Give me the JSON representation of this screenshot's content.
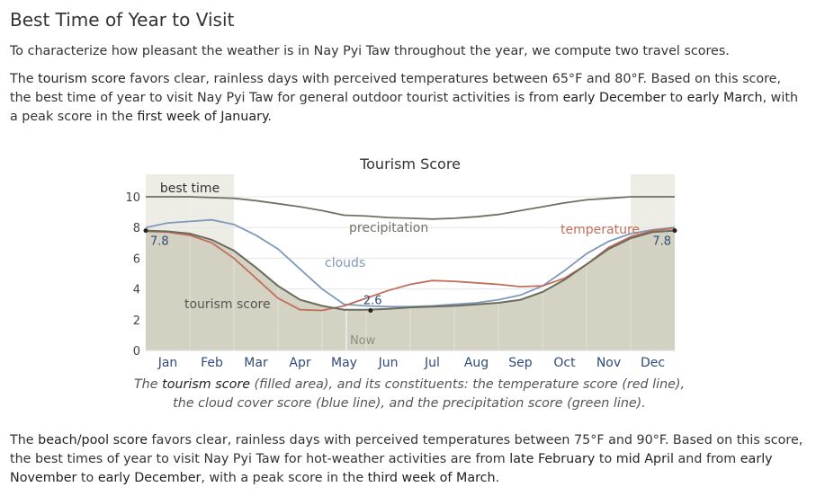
{
  "heading": "Best Time of Year to Visit",
  "intro": "To characterize how pleasant the weather is in Nay Pyi Taw throughout the year, we compute two travel scores.",
  "tourism_para": {
    "p1": "The ",
    "term": "tourism score",
    "p2": " favors clear, rainless days with perceived temperatures between 65°F and 80°F. Based on this score, the best time of year to visit Nay Pyi Taw for general outdoor tourist activities is from ",
    "start": "early December",
    "p3": " to ",
    "end": "early March",
    "p4": ", with a peak score in the ",
    "peak": "first week of January",
    "p5": "."
  },
  "caption": {
    "c1": "The ",
    "term": "tourism score",
    "c2": " (filled area), and its constituents: the temperature score (red line), the cloud cover score (blue line), and the precipitation score (green line)."
  },
  "beach_para": {
    "p1": "The ",
    "term": "beach/pool score",
    "p2": " favors clear, rainless days with perceived temperatures between 75°F and 90°F. Based on this score, the best times of year to visit Nay Pyi Taw for hot-weather activities are from ",
    "r1": "late February",
    "p3": " to ",
    "r2": "mid April",
    "p4": " and from ",
    "r3": "early November",
    "p5": " to ",
    "r4": "early December",
    "p6": ", with a peak score in the ",
    "peak": "third week of March",
    "p7": "."
  },
  "chart_data": {
    "type": "area",
    "title": "Tourism Score",
    "ylim": [
      0,
      10
    ],
    "yticks": [
      "0",
      "2",
      "4",
      "6",
      "8",
      "10"
    ],
    "months": [
      "Jan",
      "Feb",
      "Mar",
      "Apr",
      "May",
      "Jun",
      "Jul",
      "Aug",
      "Sep",
      "Oct",
      "Nov",
      "Dec"
    ],
    "x_month_fraction": [
      0,
      0.5,
      1,
      1.5,
      2,
      2.5,
      3,
      3.5,
      4,
      4.5,
      5,
      5.5,
      6,
      6.5,
      7,
      7.5,
      8,
      8.5,
      9,
      9.5,
      10,
      10.5,
      11,
      11.5,
      12
    ],
    "series": [
      {
        "name": "tourism score",
        "color": "#6b6b5e",
        "values": [
          7.8,
          7.75,
          7.6,
          7.2,
          6.5,
          5.4,
          4.2,
          3.3,
          2.9,
          2.65,
          2.65,
          2.7,
          2.8,
          2.85,
          2.9,
          3.0,
          3.1,
          3.3,
          3.8,
          4.6,
          5.6,
          6.6,
          7.3,
          7.7,
          7.8
        ]
      },
      {
        "name": "temperature",
        "color": "#c0705a",
        "values": [
          7.75,
          7.7,
          7.5,
          7.0,
          6.0,
          4.7,
          3.4,
          2.65,
          2.6,
          2.9,
          3.4,
          3.9,
          4.3,
          4.55,
          4.5,
          4.4,
          4.3,
          4.15,
          4.2,
          4.7,
          5.6,
          6.7,
          7.4,
          7.8,
          7.95
        ]
      },
      {
        "name": "clouds",
        "color": "#7f99bb",
        "values": [
          8.0,
          8.3,
          8.4,
          8.5,
          8.2,
          7.5,
          6.6,
          5.3,
          4.0,
          3.0,
          2.9,
          2.85,
          2.85,
          2.9,
          3.0,
          3.1,
          3.3,
          3.6,
          4.2,
          5.2,
          6.3,
          7.1,
          7.6,
          7.85,
          8.0
        ]
      },
      {
        "name": "precipitation",
        "color": "#6f7262",
        "values": [
          10.0,
          10.0,
          10.0,
          9.95,
          9.9,
          9.75,
          9.55,
          9.35,
          9.1,
          8.8,
          8.75,
          8.65,
          8.6,
          8.55,
          8.6,
          8.7,
          8.85,
          9.1,
          9.35,
          9.6,
          9.8,
          9.9,
          10.0,
          10.0,
          10.0
        ]
      }
    ],
    "best_time_bands": [
      [
        0,
        2
      ],
      [
        11,
        12
      ]
    ],
    "best_time_label": "best time",
    "now_label": "Now",
    "now_month": 4.55,
    "annotations": {
      "start_value": "7.8",
      "end_value": "7.8",
      "min_value": "2.6",
      "min_month": 5.1
    }
  }
}
